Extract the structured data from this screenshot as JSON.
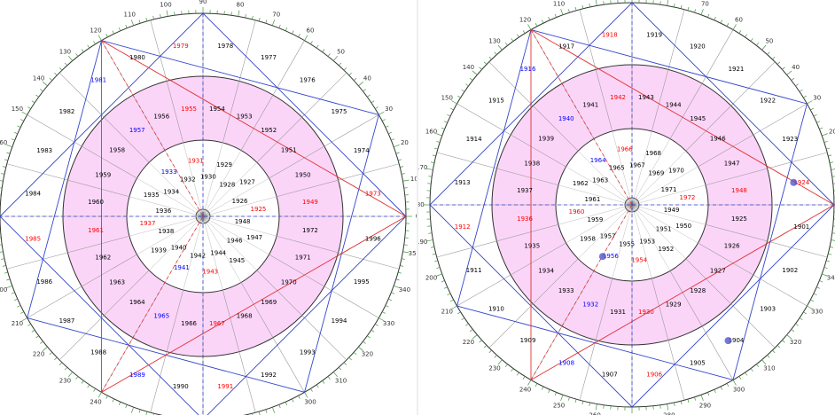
{
  "wheels": [
    {
      "degree_labels": [
        0,
        10,
        20,
        30,
        40,
        50,
        60,
        70,
        80,
        90,
        100,
        110,
        120,
        130,
        140,
        150,
        160,
        170,
        180,
        190,
        200,
        210,
        220,
        230,
        240,
        250,
        260,
        270,
        280,
        290,
        300,
        310,
        320,
        330,
        340,
        350
      ],
      "rings": [
        {
          "labels": [
            "1925",
            "1926",
            "1927",
            "1928",
            "1929",
            "1930",
            "1931",
            "1932",
            "1933",
            "1934",
            "1935",
            "1936",
            "1937",
            "1938",
            "1939",
            "1940",
            "1941",
            "1942",
            "1943",
            "1944",
            "1945",
            "1946",
            "1947",
            "1948"
          ],
          "colors": [
            "red",
            "black",
            "black",
            "black",
            "black",
            "black",
            "red",
            "black",
            "blue",
            "black",
            "black",
            "black",
            "red",
            "black",
            "black",
            "black",
            "blue",
            "black",
            "red",
            "black",
            "black",
            "black",
            "black",
            "black"
          ]
        },
        {
          "labels": [
            "1949",
            "1950",
            "1951",
            "1952",
            "1953",
            "1954",
            "1955",
            "1956",
            "1957",
            "1958",
            "1959",
            "1960",
            "1961",
            "1962",
            "1963",
            "1964",
            "1965",
            "1966",
            "1967",
            "1968",
            "1969",
            "1970",
            "1971",
            "1972"
          ],
          "colors": [
            "red",
            "black",
            "black",
            "black",
            "black",
            "black",
            "red",
            "black",
            "blue",
            "black",
            "black",
            "black",
            "red",
            "black",
            "black",
            "black",
            "blue",
            "black",
            "red",
            "black",
            "black",
            "black",
            "black",
            "black"
          ]
        },
        {
          "labels": [
            "1973",
            "1974",
            "1975",
            "1976",
            "1977",
            "1978",
            "1979",
            "1980",
            "1981",
            "1982",
            "1983",
            "1984",
            "1985",
            "1986",
            "1987",
            "1988",
            "1989",
            "1990",
            "1991",
            "1992",
            "1993",
            "1994",
            "1995",
            "1996"
          ],
          "colors": [
            "red",
            "black",
            "black",
            "black",
            "black",
            "black",
            "red",
            "black",
            "blue",
            "black",
            "black",
            "black",
            "red",
            "black",
            "black",
            "black",
            "blue",
            "black",
            "red",
            "black",
            "black",
            "black",
            "black",
            "black"
          ]
        }
      ]
    },
    {
      "degree_labels": [
        0,
        10,
        20,
        30,
        40,
        50,
        60,
        70,
        80,
        90,
        100,
        110,
        120,
        130,
        140,
        150,
        160,
        170,
        180,
        190,
        200,
        210,
        220,
        230,
        240,
        250,
        260,
        270,
        280,
        290,
        300,
        310,
        320,
        330,
        340,
        350
      ],
      "rings": [
        {
          "labels": [
            "1972",
            "1971",
            "1970",
            "1969",
            "1968",
            "1967",
            "1966",
            "1965",
            "1964",
            "1963",
            "1962",
            "1961",
            "1960",
            "1959",
            "1958",
            "1957",
            "1956",
            "1955",
            "1954",
            "1953",
            "1952",
            "1951",
            "1950",
            "1949"
          ],
          "colors": [
            "red",
            "black",
            "black",
            "black",
            "black",
            "black",
            "red",
            "black",
            "blue",
            "black",
            "black",
            "black",
            "red",
            "black",
            "black",
            "black",
            "blue",
            "black",
            "red",
            "black",
            "black",
            "black",
            "black",
            "black"
          ]
        },
        {
          "labels": [
            "1948",
            "1947",
            "1946",
            "1945",
            "1944",
            "1943",
            "1942",
            "1941",
            "1940",
            "1939",
            "1938",
            "1937",
            "1936",
            "1935",
            "1934",
            "1933",
            "1932",
            "1931",
            "1930",
            "1929",
            "1928",
            "1927",
            "1926",
            "1925"
          ],
          "colors": [
            "red",
            "black",
            "black",
            "black",
            "black",
            "black",
            "red",
            "black",
            "blue",
            "black",
            "black",
            "black",
            "red",
            "black",
            "black",
            "black",
            "blue",
            "black",
            "red",
            "black",
            "black",
            "black",
            "black",
            "black"
          ]
        },
        {
          "labels": [
            "1924",
            "1923",
            "1922",
            "1921",
            "1920",
            "1919",
            "1918",
            "1917",
            "1916",
            "1915",
            "1914",
            "1913",
            "1912",
            "1911",
            "1910",
            "1909",
            "1908",
            "1907",
            "1906",
            "1905",
            "1904",
            "1903",
            "1902",
            "1901"
          ],
          "colors": [
            "red",
            "black",
            "black",
            "black",
            "black",
            "black",
            "red",
            "black",
            "blue",
            "black",
            "black",
            "black",
            "red",
            "black",
            "black",
            "black",
            "blue",
            "black",
            "red",
            "black",
            "black",
            "black",
            "black",
            "black"
          ]
        }
      ]
    }
  ]
}
